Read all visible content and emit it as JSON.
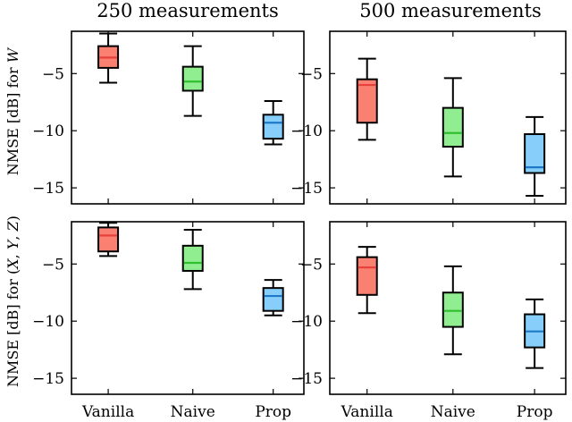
{
  "colors": {
    "Vanilla": {
      "fill": "#fa8072",
      "median": "#e8403a"
    },
    "Naive": {
      "fill": "#90ee90",
      "median": "#2fbf2f"
    },
    "Prop": {
      "fill": "#87cefa",
      "median": "#1e78c8"
    }
  },
  "chart_data": [
    {
      "type": "box",
      "title": "250 measurements",
      "ylabel": "NMSE [dB] for W",
      "ylim": [
        -16.4,
        -1.3
      ],
      "yticks": [
        -5,
        -10,
        -15
      ],
      "categories": [
        "Vanilla",
        "Naive",
        "Prop"
      ],
      "boxes": [
        {
          "name": "Vanilla",
          "whisker_low": -5.8,
          "q1": -4.5,
          "median": -3.6,
          "q3": -2.6,
          "whisker_high": -1.5
        },
        {
          "name": "Naive",
          "whisker_low": -8.7,
          "q1": -6.5,
          "median": -5.7,
          "q3": -4.4,
          "whisker_high": -2.6
        },
        {
          "name": "Prop",
          "whisker_low": -11.2,
          "q1": -10.7,
          "median": -9.3,
          "q3": -8.6,
          "whisker_high": -7.4
        }
      ]
    },
    {
      "type": "box",
      "title": "500 measurements",
      "ylabel": "",
      "ylim": [
        -16.4,
        -1.3
      ],
      "yticks": [
        -5,
        -10,
        -15
      ],
      "categories": [
        "Vanilla",
        "Naive",
        "Prop"
      ],
      "boxes": [
        {
          "name": "Vanilla",
          "whisker_low": -10.8,
          "q1": -9.3,
          "median": -6.0,
          "q3": -5.5,
          "whisker_high": -3.7
        },
        {
          "name": "Naive",
          "whisker_low": -14.0,
          "q1": -11.4,
          "median": -10.2,
          "q3": -8.0,
          "whisker_high": -5.4
        },
        {
          "name": "Prop",
          "whisker_low": -15.7,
          "q1": -13.7,
          "median": -13.2,
          "q3": -10.3,
          "whisker_high": -8.8
        }
      ]
    },
    {
      "type": "box",
      "title": "",
      "ylabel": "NMSE [dB] for (X, Y, Z)",
      "ylim": [
        -16.4,
        -1.3
      ],
      "yticks": [
        -5,
        -10,
        -15
      ],
      "categories": [
        "Vanilla",
        "Naive",
        "Prop"
      ],
      "boxes": [
        {
          "name": "Vanilla",
          "whisker_low": -4.3,
          "q1": -3.9,
          "median": -2.5,
          "q3": -1.8,
          "whisker_high": -1.4
        },
        {
          "name": "Naive",
          "whisker_low": -7.2,
          "q1": -5.6,
          "median": -4.9,
          "q3": -3.4,
          "whisker_high": -2.0
        },
        {
          "name": "Prop",
          "whisker_low": -9.5,
          "q1": -9.1,
          "median": -7.8,
          "q3": -7.1,
          "whisker_high": -6.4
        }
      ]
    },
    {
      "type": "box",
      "title": "",
      "ylabel": "",
      "ylim": [
        -16.4,
        -1.3
      ],
      "yticks": [
        -5,
        -10,
        -15
      ],
      "categories": [
        "Vanilla",
        "Naive",
        "Prop"
      ],
      "boxes": [
        {
          "name": "Vanilla",
          "whisker_low": -9.3,
          "q1": -7.7,
          "median": -5.3,
          "q3": -4.4,
          "whisker_high": -3.5
        },
        {
          "name": "Naive",
          "whisker_low": -12.9,
          "q1": -10.5,
          "median": -9.1,
          "q3": -7.5,
          "whisker_high": -5.2
        },
        {
          "name": "Prop",
          "whisker_low": -14.1,
          "q1": -12.3,
          "median": -10.9,
          "q3": -9.4,
          "whisker_high": -8.1
        }
      ]
    }
  ]
}
